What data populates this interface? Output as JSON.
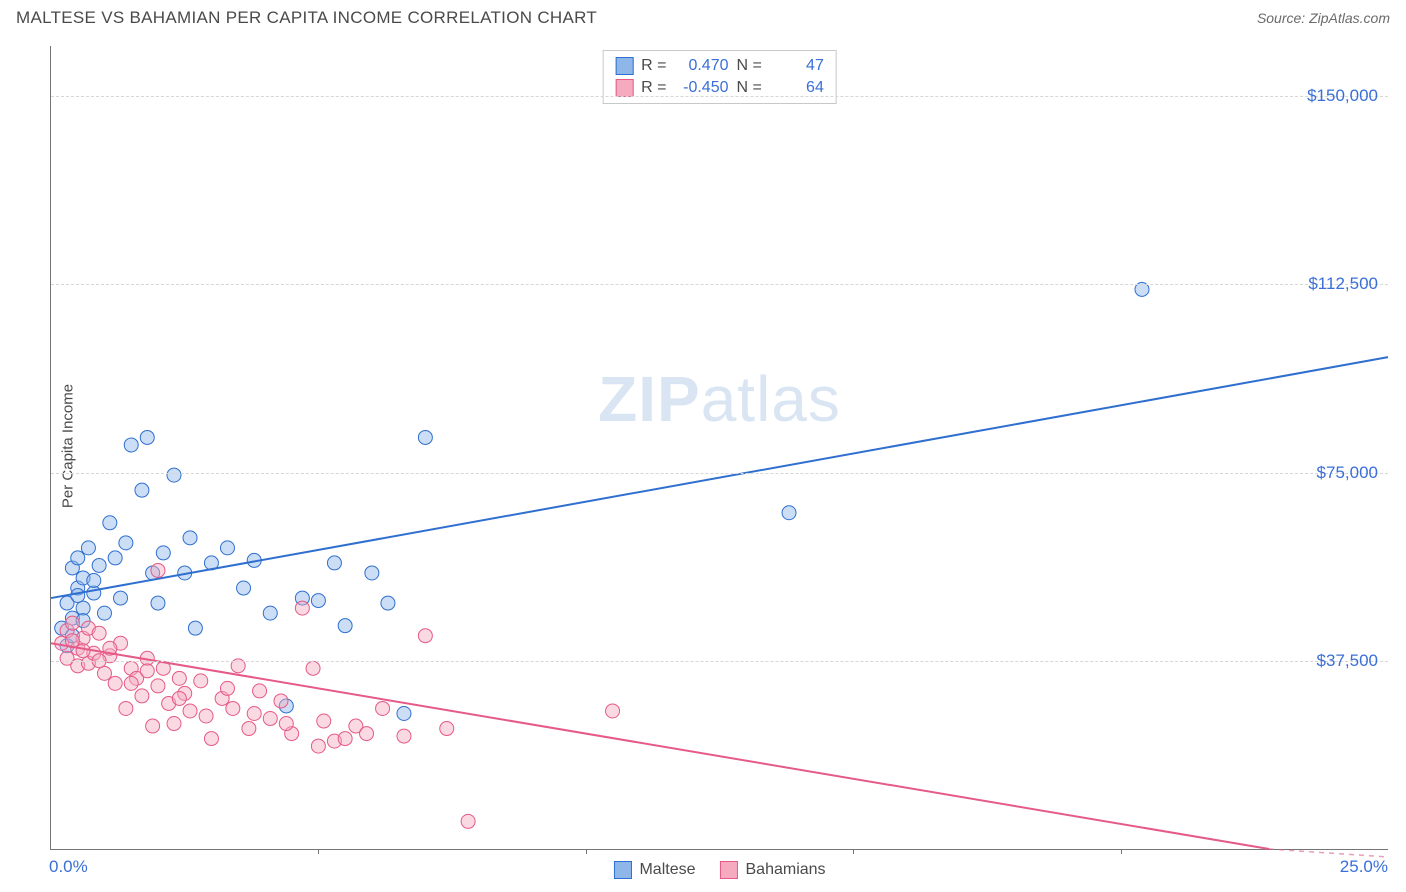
{
  "title": "MALTESE VS BAHAMIAN PER CAPITA INCOME CORRELATION CHART",
  "source_label": "Source:",
  "source_name": "ZipAtlas.com",
  "ylabel": "Per Capita Income",
  "watermark_a": "ZIP",
  "watermark_b": "atlas",
  "chart": {
    "type": "scatter",
    "xlim": [
      0,
      25
    ],
    "ylim": [
      0,
      160000
    ],
    "background_color": "#ffffff",
    "grid_color": "#d6d6d6",
    "axis_color": "#757575",
    "tick_color": "#3a6fd8",
    "tick_fontsize": 17,
    "yticks": [
      {
        "v": 37500,
        "label": "$37,500"
      },
      {
        "v": 75000,
        "label": "$75,000"
      },
      {
        "v": 112500,
        "label": "$112,500"
      },
      {
        "v": 150000,
        "label": "$150,000"
      }
    ],
    "xticks_minor_step": 5,
    "xtick_left": {
      "v": 0,
      "label": "0.0%"
    },
    "xtick_right": {
      "v": 25,
      "label": "25.0%"
    },
    "marker_radius": 7,
    "marker_opacity": 0.45,
    "line_width": 2,
    "series": [
      {
        "name": "Maltese",
        "fill_color": "#8fb6e8",
        "stroke_color": "#2f6fd0",
        "line_color": "#2f6fd0",
        "R": "0.470",
        "N": "47",
        "trend": {
          "x1": 0,
          "y1": 50000,
          "x2": 25,
          "y2": 98000
        },
        "points": [
          [
            0.2,
            44000
          ],
          [
            0.3,
            49000
          ],
          [
            0.3,
            40500
          ],
          [
            0.4,
            56000
          ],
          [
            0.5,
            58000
          ],
          [
            0.5,
            52000
          ],
          [
            0.6,
            54000
          ],
          [
            0.6,
            48000
          ],
          [
            0.7,
            60000
          ],
          [
            0.8,
            51000
          ],
          [
            0.9,
            56500
          ],
          [
            1.0,
            47000
          ],
          [
            1.1,
            65000
          ],
          [
            1.2,
            58000
          ],
          [
            1.3,
            50000
          ],
          [
            1.5,
            80500
          ],
          [
            1.7,
            71500
          ],
          [
            1.8,
            82000
          ],
          [
            2.0,
            49000
          ],
          [
            2.1,
            59000
          ],
          [
            2.3,
            74500
          ],
          [
            2.5,
            55000
          ],
          [
            2.7,
            44000
          ],
          [
            3.0,
            57000
          ],
          [
            3.3,
            60000
          ],
          [
            3.6,
            52000
          ],
          [
            3.8,
            57500
          ],
          [
            4.1,
            47000
          ],
          [
            4.4,
            28500
          ],
          [
            4.7,
            50000
          ],
          [
            5.0,
            49500
          ],
          [
            5.3,
            57000
          ],
          [
            5.5,
            44500
          ],
          [
            6.0,
            55000
          ],
          [
            6.3,
            49000
          ],
          [
            6.6,
            27000
          ],
          [
            7.0,
            82000
          ],
          [
            13.8,
            67000
          ],
          [
            20.4,
            111500
          ],
          [
            0.4,
            46000
          ],
          [
            0.5,
            50500
          ],
          [
            0.8,
            53500
          ],
          [
            1.4,
            61000
          ],
          [
            1.9,
            55000
          ],
          [
            2.6,
            62000
          ],
          [
            0.4,
            42500
          ],
          [
            0.6,
            45500
          ]
        ]
      },
      {
        "name": "Bahamians",
        "fill_color": "#f5aac0",
        "stroke_color": "#e55a87",
        "line_color": "#e55a87",
        "R": "-0.450",
        "N": "64",
        "trend": {
          "x1": 0,
          "y1": 41000,
          "x2": 25,
          "y2": -4000
        },
        "points": [
          [
            0.2,
            41000
          ],
          [
            0.3,
            43500
          ],
          [
            0.3,
            38000
          ],
          [
            0.4,
            45000
          ],
          [
            0.5,
            40000
          ],
          [
            0.5,
            36500
          ],
          [
            0.6,
            42000
          ],
          [
            0.7,
            44000
          ],
          [
            0.7,
            37000
          ],
          [
            0.8,
            39000
          ],
          [
            0.9,
            43000
          ],
          [
            1.0,
            35000
          ],
          [
            1.1,
            38500
          ],
          [
            1.2,
            33000
          ],
          [
            1.3,
            41000
          ],
          [
            1.4,
            28000
          ],
          [
            1.5,
            36000
          ],
          [
            1.6,
            34000
          ],
          [
            1.7,
            30500
          ],
          [
            1.8,
            38000
          ],
          [
            1.9,
            24500
          ],
          [
            2.0,
            32500
          ],
          [
            2.1,
            36000
          ],
          [
            2.2,
            29000
          ],
          [
            2.3,
            25000
          ],
          [
            2.4,
            34000
          ],
          [
            2.5,
            31000
          ],
          [
            2.6,
            27500
          ],
          [
            2.8,
            33500
          ],
          [
            3.0,
            22000
          ],
          [
            3.2,
            30000
          ],
          [
            3.4,
            28000
          ],
          [
            3.5,
            36500
          ],
          [
            3.7,
            24000
          ],
          [
            3.9,
            31500
          ],
          [
            4.1,
            26000
          ],
          [
            4.3,
            29500
          ],
          [
            4.5,
            23000
          ],
          [
            4.7,
            48000
          ],
          [
            4.9,
            36000
          ],
          [
            5.1,
            25500
          ],
          [
            5.3,
            21500
          ],
          [
            5.5,
            22000
          ],
          [
            5.7,
            24500
          ],
          [
            5.9,
            23000
          ],
          [
            6.2,
            28000
          ],
          [
            6.6,
            22500
          ],
          [
            7.0,
            42500
          ],
          [
            7.4,
            24000
          ],
          [
            7.8,
            5500
          ],
          [
            10.5,
            27500
          ],
          [
            0.4,
            41500
          ],
          [
            0.6,
            39500
          ],
          [
            0.9,
            37500
          ],
          [
            1.1,
            40000
          ],
          [
            1.5,
            33000
          ],
          [
            1.8,
            35500
          ],
          [
            2.0,
            55500
          ],
          [
            2.4,
            30000
          ],
          [
            2.9,
            26500
          ],
          [
            3.3,
            32000
          ],
          [
            3.8,
            27000
          ],
          [
            4.4,
            25000
          ],
          [
            5.0,
            20500
          ]
        ]
      }
    ]
  },
  "stats_box": {
    "R_label": "R =",
    "N_label": "N ="
  },
  "legend": {
    "series1": "Maltese",
    "series2": "Bahamians"
  }
}
